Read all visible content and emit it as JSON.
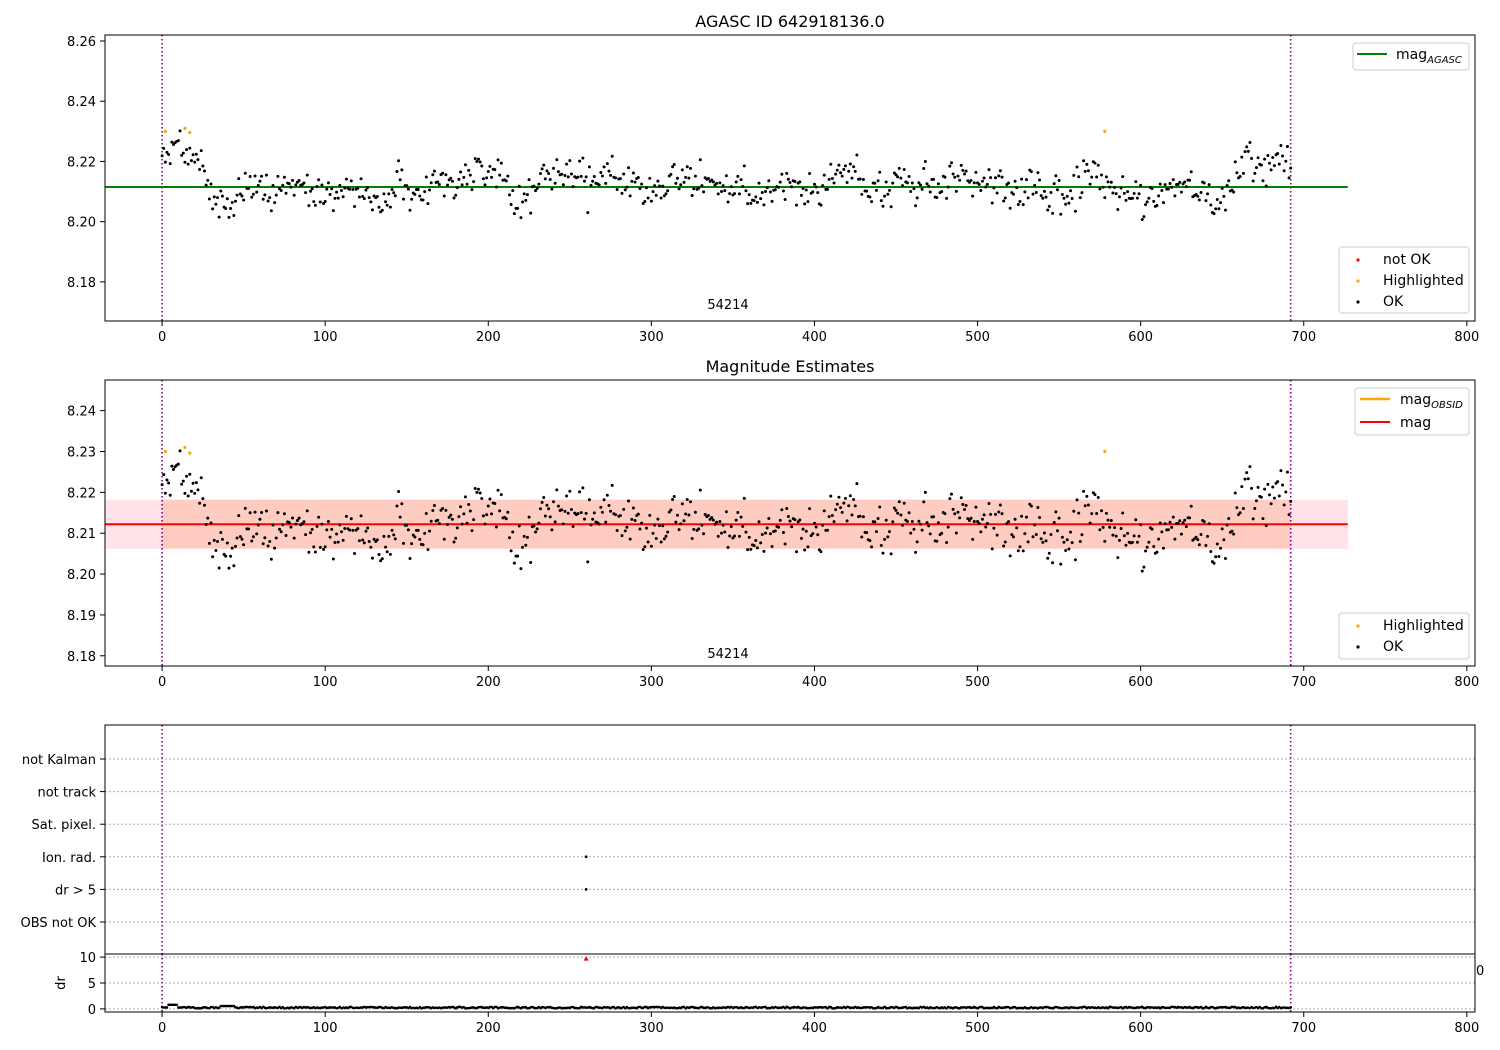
{
  "colors": {
    "ok": "#000000",
    "highlighted": "#ffa500",
    "not_ok": "#ff0000",
    "agasc_line": "#008000",
    "mag_line": "#ff0000",
    "obsid_line": "#ffa500",
    "band_outer": "#ffc0cb",
    "band_inner": "#ffa07a",
    "vline": "#800080"
  },
  "chart_data": [
    {
      "type": "scatter",
      "title": "AGASC ID 642918136.0",
      "xlim": [
        -35,
        805
      ],
      "ylim": [
        8.167,
        8.262
      ],
      "xticks": [
        0,
        100,
        200,
        300,
        400,
        500,
        600,
        700,
        800
      ],
      "yticks": [
        8.18,
        8.2,
        8.22,
        8.24,
        8.26
      ],
      "ytick_labels": [
        "8.18",
        "8.20",
        "8.22",
        "8.24",
        "8.26"
      ],
      "mag_agasc": 8.2115,
      "mag_agasc_x_range": [
        -35,
        727
      ],
      "obsid_label": "54214",
      "obsid_label_x": 347,
      "obsid_label_y": 8.171,
      "vlines_x": [
        0,
        692
      ],
      "n_points": 693,
      "ok_mean": 8.2125,
      "ok_scatter": 0.0058,
      "seed": 642918136,
      "highlighted_points": [
        {
          "x": 2,
          "y": 8.23
        },
        {
          "x": 14,
          "y": 8.231
        },
        {
          "x": 17,
          "y": 8.2296
        },
        {
          "x": 578,
          "y": 8.23
        }
      ],
      "legend_top": [
        {
          "label_main": "mag",
          "label_sub": "AGASC",
          "kind": "line",
          "color_key": "agasc_line"
        }
      ],
      "legend_bottom": [
        {
          "label": "not OK",
          "color_key": "not_ok"
        },
        {
          "label": "Highlighted",
          "color_key": "highlighted"
        },
        {
          "label": "OK",
          "color_key": "ok"
        }
      ]
    },
    {
      "type": "scatter",
      "title": "Magnitude Estimates",
      "xlim": [
        -35,
        805
      ],
      "ylim": [
        8.1775,
        8.2475
      ],
      "xticks": [
        0,
        100,
        200,
        300,
        400,
        500,
        600,
        700,
        800
      ],
      "yticks": [
        8.18,
        8.19,
        8.2,
        8.21,
        8.22,
        8.23,
        8.24
      ],
      "ytick_labels": [
        "8.18",
        "8.19",
        "8.20",
        "8.21",
        "8.22",
        "8.23",
        "8.24"
      ],
      "mag": 8.2122,
      "mag_band": [
        8.2062,
        8.2182
      ],
      "mag_band_x_range": [
        -35,
        727
      ],
      "obsid_band_x_range": [
        0,
        692
      ],
      "obsid_label": "54214",
      "obsid_label_x": 347,
      "obsid_label_y": 8.1795,
      "vlines_x": [
        0,
        692
      ],
      "legend_top": [
        {
          "label_main": "mag",
          "label_sub": "OBSID",
          "kind": "line",
          "color_key": "obsid_line"
        },
        {
          "label_main": "mag",
          "label_sub": "",
          "kind": "line",
          "color_key": "mag_line"
        }
      ],
      "legend_bottom": [
        {
          "label": "Highlighted",
          "color_key": "highlighted"
        },
        {
          "label": "OK",
          "color_key": "ok"
        }
      ]
    },
    {
      "type": "scatter",
      "title": "",
      "xlim": [
        -35,
        805
      ],
      "flag_labels": [
        "not Kalman",
        "not track",
        "Sat. pixel.",
        "Ion. rad.",
        "dr > 5",
        "OBS not OK"
      ],
      "flag_points": [
        {
          "x": 260,
          "flag": "Ion. rad."
        },
        {
          "x": 260,
          "flag": "dr > 5"
        }
      ],
      "vlines_x": [
        0,
        692
      ]
    },
    {
      "type": "line",
      "ylabel": "dr",
      "xlim": [
        -35,
        805
      ],
      "ylim": [
        -0.6,
        10.6
      ],
      "yticks": [
        0,
        5,
        10
      ],
      "ytick_labels": [
        "0",
        "5",
        "10"
      ],
      "xticks": [
        0,
        100,
        200,
        300,
        400,
        500,
        600,
        700,
        800
      ],
      "dr_outlier": {
        "x": 260,
        "y": 9.7
      },
      "dr_typical": 0.25,
      "right_edge_label": "0",
      "vlines_x": [
        0,
        692
      ]
    }
  ]
}
